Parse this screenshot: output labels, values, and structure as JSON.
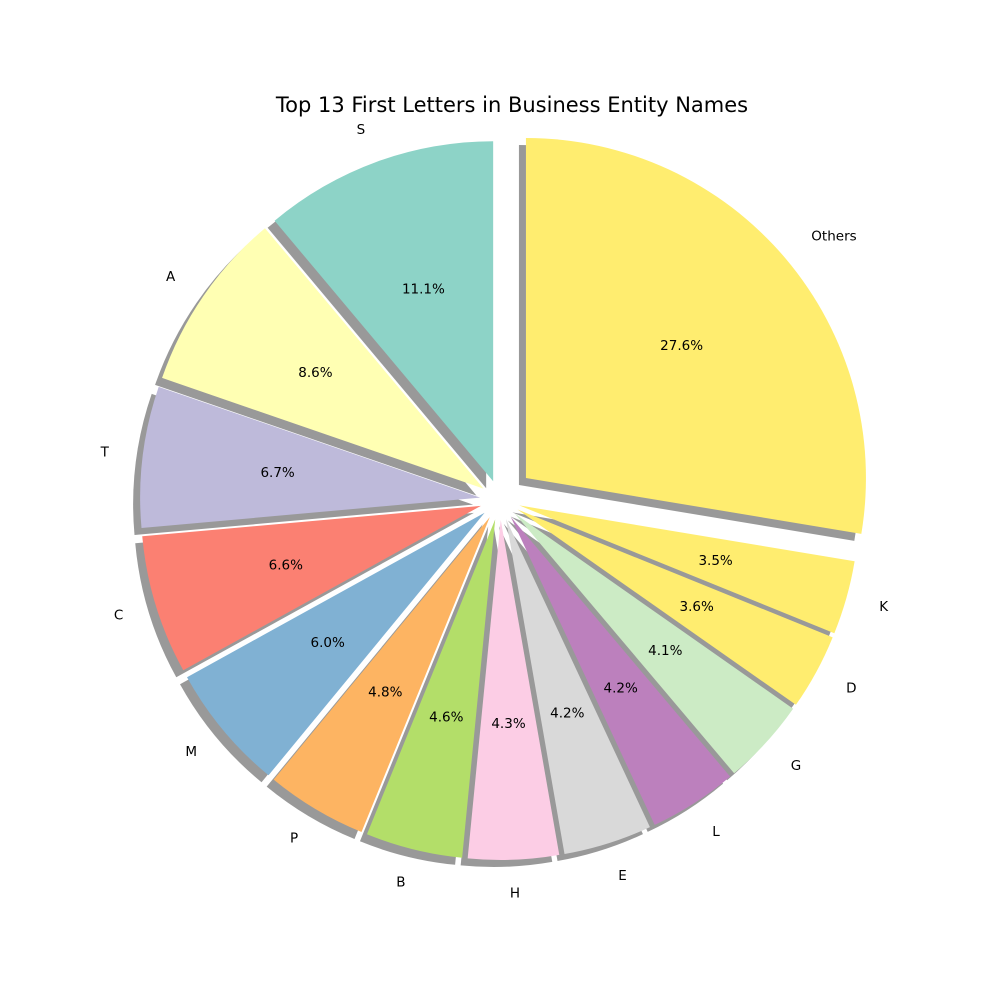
{
  "chart_data": {
    "type": "pie",
    "title": "Top 13 First Letters in Business Entity Names",
    "start": "top, counterclockwise",
    "shadow": true,
    "slices": [
      {
        "label": "S",
        "value": 11.1,
        "pct_label": "11.1%",
        "color": "#8dd3c7"
      },
      {
        "label": "A",
        "value": 8.6,
        "pct_label": "8.6%",
        "color": "#ffffb3"
      },
      {
        "label": "T",
        "value": 6.7,
        "pct_label": "6.7%",
        "color": "#bebada"
      },
      {
        "label": "C",
        "value": 6.6,
        "pct_label": "6.6%",
        "color": "#fb8072"
      },
      {
        "label": "M",
        "value": 6.0,
        "pct_label": "6.0%",
        "color": "#80b1d3"
      },
      {
        "label": "P",
        "value": 4.8,
        "pct_label": "4.8%",
        "color": "#fdb462"
      },
      {
        "label": "B",
        "value": 4.6,
        "pct_label": "4.6%",
        "color": "#b3de69"
      },
      {
        "label": "H",
        "value": 4.3,
        "pct_label": "4.3%",
        "color": "#fccde5"
      },
      {
        "label": "E",
        "value": 4.2,
        "pct_label": "4.2%",
        "color": "#d9d9d9"
      },
      {
        "label": "L",
        "value": 4.2,
        "pct_label": "4.2%",
        "color": "#bc80bd"
      },
      {
        "label": "G",
        "value": 4.1,
        "pct_label": "4.1%",
        "color": "#ccebc5"
      },
      {
        "label": "D",
        "value": 3.6,
        "pct_label": "3.6%",
        "color": "#ffed6f"
      },
      {
        "label": "K",
        "value": 3.5,
        "pct_label": "3.5%",
        "color": "#ffed6f"
      },
      {
        "label": "Others",
        "value": 27.6,
        "pct_label": "27.6%",
        "color": "#ffed6f",
        "exploded": true
      }
    ]
  }
}
